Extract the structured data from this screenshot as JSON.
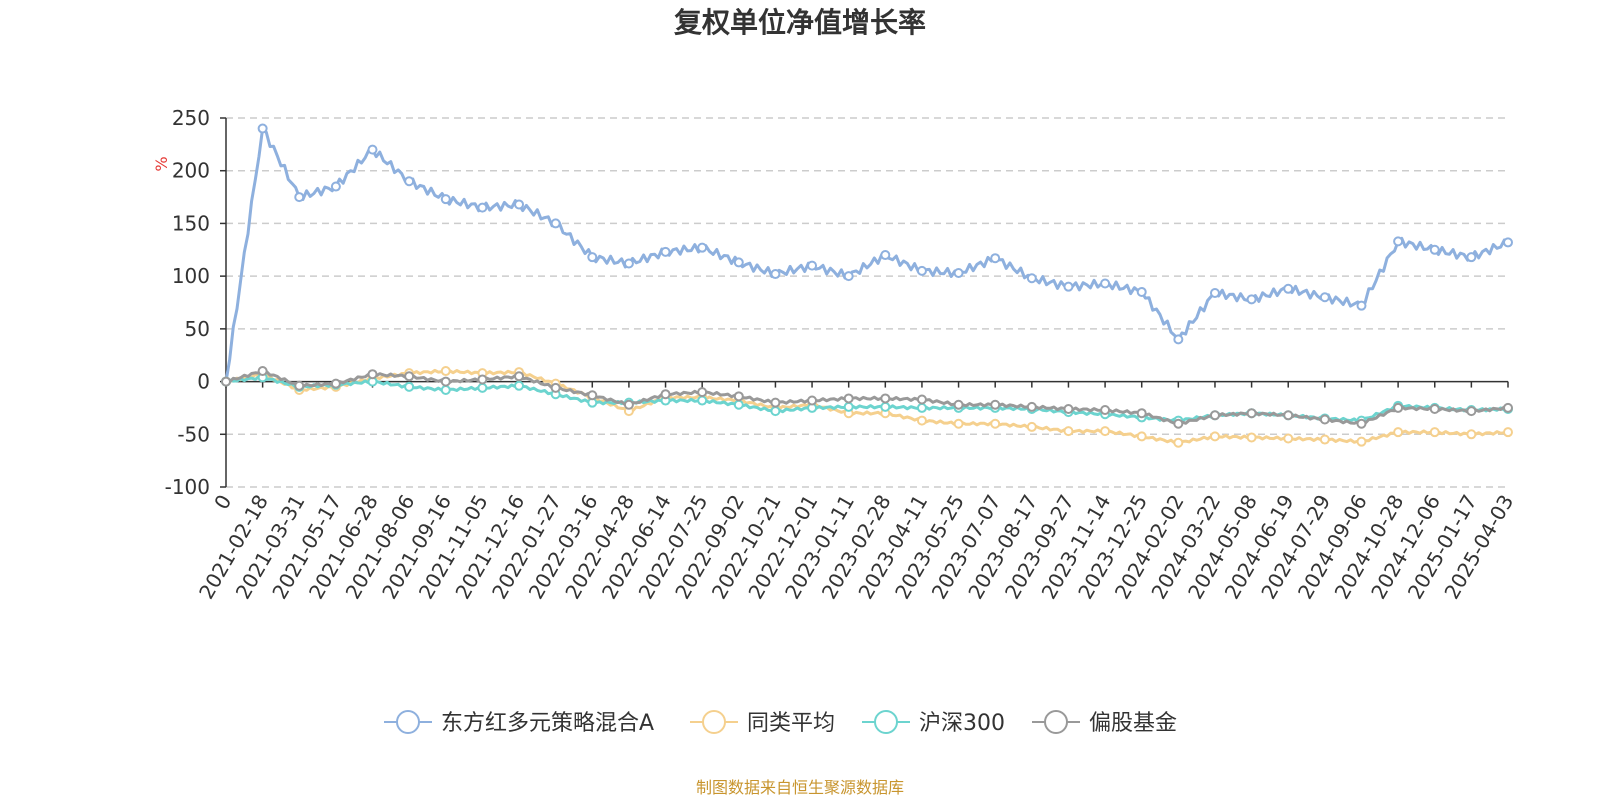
{
  "chart_data": {
    "type": "line",
    "title": "复权单位净值增长率",
    "ylabel": "%",
    "xlabel": "",
    "ylim": [
      -100,
      250
    ],
    "yticks": [
      250,
      200,
      150,
      100,
      50,
      0,
      -50,
      -100
    ],
    "grid": true,
    "legend_position": "bottom",
    "categories": [
      "0",
      "2021-02-18",
      "2021-03-31",
      "2021-05-17",
      "2021-06-28",
      "2021-08-06",
      "2021-09-16",
      "2021-11-05",
      "2021-12-16",
      "2022-01-27",
      "2022-03-16",
      "2022-04-28",
      "2022-06-14",
      "2022-07-25",
      "2022-09-02",
      "2022-10-21",
      "2022-12-01",
      "2023-01-11",
      "2023-02-28",
      "2023-04-11",
      "2023-05-25",
      "2023-07-07",
      "2023-08-17",
      "2023-09-27",
      "2023-11-14",
      "2023-12-25",
      "2024-02-02",
      "2024-03-22",
      "2024-05-08",
      "2024-06-19",
      "2024-07-29",
      "2024-09-06",
      "2024-10-28",
      "2024-12-06",
      "2025-01-17",
      "2025-04-03"
    ],
    "series": [
      {
        "name": "东方红多元策略混合A",
        "color": "#8eb0de",
        "values": [
          0,
          240,
          175,
          185,
          220,
          190,
          173,
          165,
          168,
          150,
          118,
          112,
          123,
          127,
          113,
          102,
          110,
          100,
          120,
          105,
          103,
          117,
          98,
          90,
          93,
          85,
          40,
          84,
          78,
          88,
          80,
          72,
          133,
          125,
          118,
          132
        ]
      },
      {
        "name": "同类平均",
        "color": "#f5d08e",
        "values": [
          0,
          7,
          -8,
          -5,
          3,
          8,
          10,
          8,
          9,
          -2,
          -15,
          -28,
          -15,
          -15,
          -18,
          -25,
          -22,
          -30,
          -30,
          -37,
          -40,
          -40,
          -43,
          -47,
          -47,
          -52,
          -58,
          -52,
          -53,
          -54,
          -55,
          -57,
          -48,
          -48,
          -50,
          -48
        ]
      },
      {
        "name": "沪深300",
        "color": "#6cd4cf",
        "values": [
          0,
          4,
          -5,
          -3,
          0,
          -5,
          -8,
          -6,
          -4,
          -12,
          -20,
          -20,
          -18,
          -18,
          -22,
          -28,
          -25,
          -24,
          -24,
          -25,
          -25,
          -25,
          -26,
          -29,
          -31,
          -34,
          -37,
          -32,
          -30,
          -32,
          -35,
          -37,
          -23,
          -25,
          -27,
          -26
        ]
      },
      {
        "name": "偏股基金",
        "color": "#999999",
        "values": [
          0,
          10,
          -4,
          -2,
          7,
          5,
          0,
          2,
          5,
          -6,
          -13,
          -22,
          -12,
          -10,
          -14,
          -20,
          -18,
          -16,
          -16,
          -17,
          -22,
          -22,
          -24,
          -26,
          -27,
          -30,
          -40,
          -32,
          -30,
          -32,
          -36,
          -40,
          -25,
          -26,
          -28,
          -25
        ]
      }
    ]
  },
  "legend": {
    "items": [
      "东方红多元策略混合A",
      "同类平均",
      "沪深300",
      "偏股基金"
    ]
  },
  "source_text": "制图数据来自恒生聚源数据库"
}
